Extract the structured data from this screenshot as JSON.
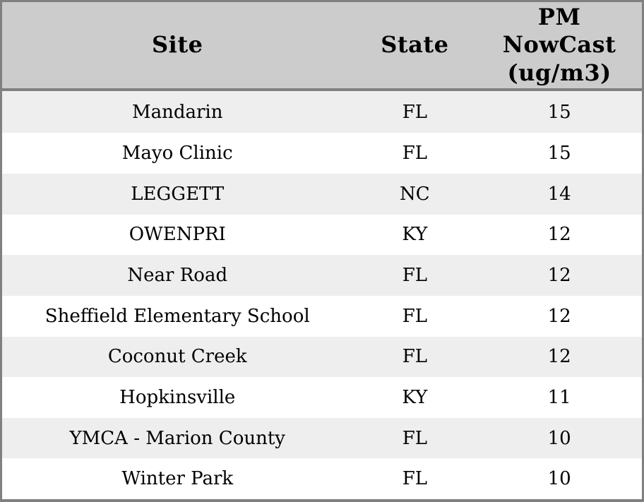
{
  "chart_data": {
    "type": "table",
    "columns": [
      {
        "id": "site",
        "label": "Site"
      },
      {
        "id": "state",
        "label": "State"
      },
      {
        "id": "pm",
        "label": "PM NowCast (ug/m3)"
      }
    ],
    "rows": [
      {
        "site": "Mandarin",
        "state": "FL",
        "pm": 15
      },
      {
        "site": "Mayo Clinic",
        "state": "FL",
        "pm": 15
      },
      {
        "site": "LEGGETT",
        "state": "NC",
        "pm": 14
      },
      {
        "site": "OWENPRI",
        "state": "KY",
        "pm": 12
      },
      {
        "site": "Near Road",
        "state": "FL",
        "pm": 12
      },
      {
        "site": "Sheffield Elementary School",
        "state": "FL",
        "pm": 12
      },
      {
        "site": "Coconut Creek",
        "state": "FL",
        "pm": 12
      },
      {
        "site": "Hopkinsville",
        "state": "KY",
        "pm": 11
      },
      {
        "site": "YMCA - Marion County",
        "state": "FL",
        "pm": 10
      },
      {
        "site": "Winter Park",
        "state": "FL",
        "pm": 10
      }
    ]
  },
  "colors": {
    "header_bg": "#cccccc",
    "row_alt_bg": "#eeeeee",
    "row_bg": "#ffffff",
    "border": "#808080",
    "text": "#000000"
  }
}
